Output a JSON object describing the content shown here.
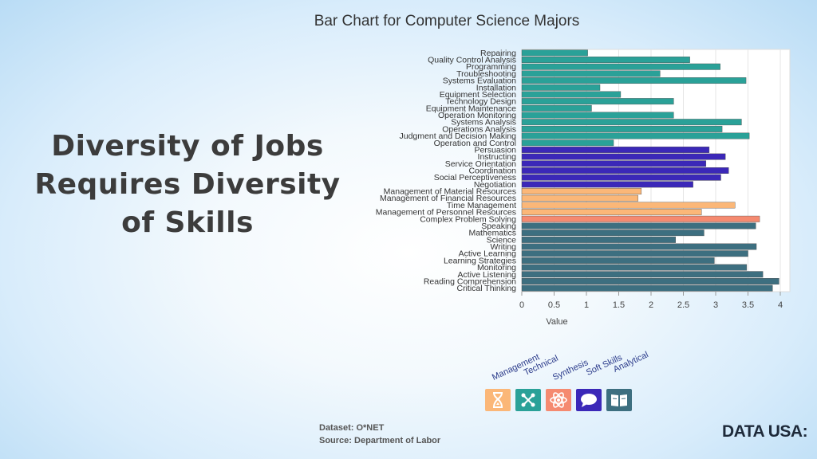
{
  "slide": {
    "heading_lines": [
      "Diversity of Jobs",
      "Requires Diversity",
      "of Skills"
    ],
    "dataset": "Dataset: O*NET",
    "source": "Source: Department of Labor",
    "logo": "DATA USA:"
  },
  "chart_data": {
    "type": "bar",
    "orientation": "horizontal",
    "title": "Bar Chart for Computer Science Majors",
    "xlabel": "Value",
    "xlim": [
      0,
      4
    ],
    "xticks": [
      "0",
      "0.5",
      "1",
      "1.5",
      "2",
      "2.5",
      "3",
      "3.5",
      "4"
    ],
    "grid": true,
    "categories": [
      "Repairing",
      "Quality Control Analysis",
      "Programming",
      "Troubleshooting",
      "Systems Evaluation",
      "Installation",
      "Equipment Selection",
      "Technology Design",
      "Equipment Maintenance",
      "Operation Monitoring",
      "Systems Analysis",
      "Operations Analysis",
      "Judgment and Decision Making",
      "Operation and Control",
      "Persuasion",
      "Instructing",
      "Service Orientation",
      "Coordination",
      "Social Perceptiveness",
      "Negotiation",
      "Management of Material Resources",
      "Management of Financial Resources",
      "Time Management",
      "Management of Personnel Resources",
      "Complex Problem Solving",
      "Speaking",
      "Mathematics",
      "Science",
      "Writing",
      "Active Learning",
      "Learning Strategies",
      "Monitoring",
      "Active Listening",
      "Reading Comprehension",
      "Critical Thinking"
    ],
    "values": [
      1.02,
      2.6,
      3.07,
      2.14,
      3.47,
      1.21,
      1.53,
      2.35,
      1.08,
      2.35,
      3.4,
      3.1,
      3.52,
      1.42,
      2.9,
      3.15,
      2.85,
      3.2,
      3.08,
      2.65,
      1.85,
      1.8,
      3.3,
      2.78,
      3.68,
      3.62,
      2.82,
      2.38,
      3.63,
      3.5,
      2.98,
      3.48,
      3.73,
      3.98,
      3.88
    ],
    "groups": [
      "Technical",
      "Technical",
      "Technical",
      "Technical",
      "Technical",
      "Technical",
      "Technical",
      "Technical",
      "Technical",
      "Technical",
      "Technical",
      "Technical",
      "Technical",
      "Technical",
      "Soft Skills",
      "Soft Skills",
      "Soft Skills",
      "Soft Skills",
      "Soft Skills",
      "Soft Skills",
      "Management",
      "Management",
      "Management",
      "Management",
      "Synthesis",
      "Analytical",
      "Analytical",
      "Analytical",
      "Analytical",
      "Analytical",
      "Analytical",
      "Analytical",
      "Analytical",
      "Analytical",
      "Analytical"
    ],
    "group_colors": {
      "Technical": "#2aa198",
      "Soft Skills": "#3b28b8",
      "Management": "#fbb778",
      "Synthesis": "#f58a70",
      "Analytical": "#3d6f80"
    },
    "legend": [
      {
        "label": "Management",
        "icon": "hourglass-icon",
        "color": "#fbb778"
      },
      {
        "label": "Technical",
        "icon": "network-icon",
        "color": "#2aa198"
      },
      {
        "label": "Synthesis",
        "icon": "atom-icon",
        "color": "#f58a70"
      },
      {
        "label": "Soft Skills",
        "icon": "speech-bubble-icon",
        "color": "#3b28b8"
      },
      {
        "label": "Analytical",
        "icon": "book-icon",
        "color": "#3d6f80"
      }
    ]
  }
}
